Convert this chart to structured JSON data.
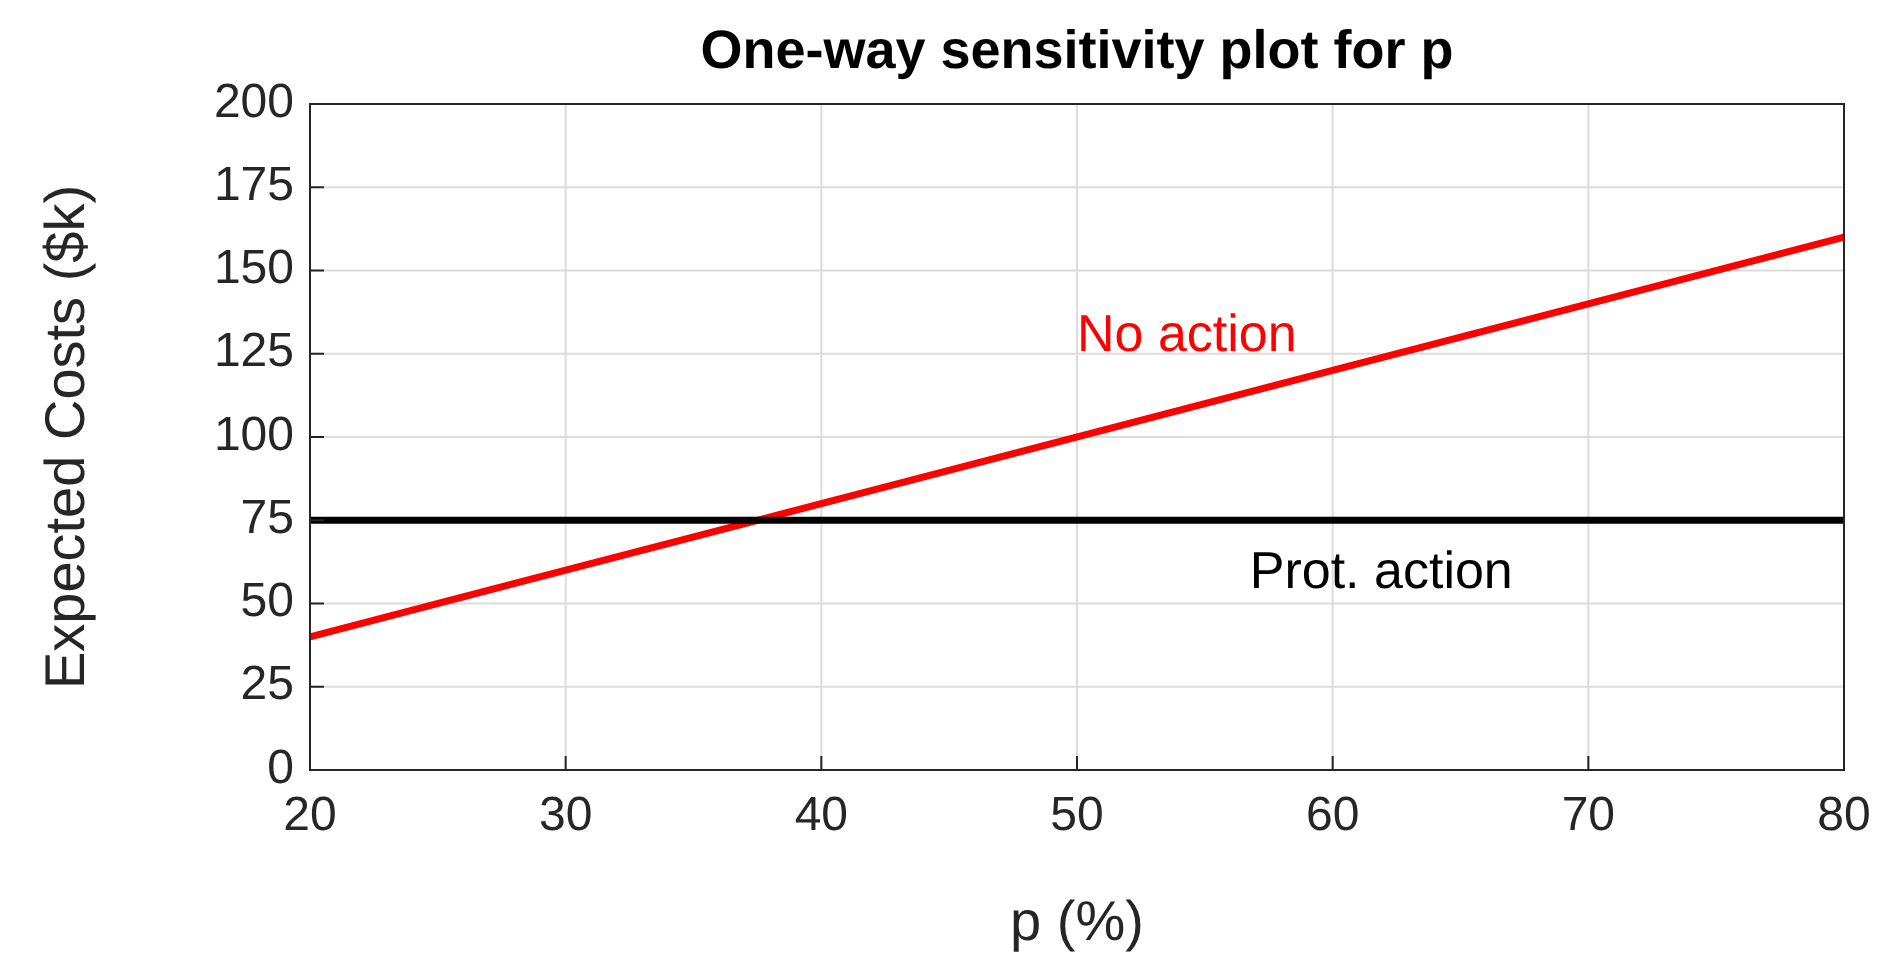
{
  "chart_data": {
    "type": "line",
    "title": "One-way sensitivity plot for p",
    "xlabel": "p (%)",
    "ylabel": "Expected Costs ($k)",
    "x": [
      20,
      80
    ],
    "series": [
      {
        "name": "No action",
        "color": "#ff0000",
        "values": [
          40,
          160
        ]
      },
      {
        "name": "Prot. action",
        "color": "#000000",
        "values": [
          75,
          75
        ]
      }
    ],
    "xlim": [
      20,
      80
    ],
    "xticks": [
      20,
      30,
      40,
      50,
      60,
      70,
      80
    ],
    "ylim": [
      0,
      200
    ],
    "yticks": [
      0,
      25,
      50,
      75,
      100,
      125,
      150,
      175,
      200
    ],
    "grid": true,
    "line_style": "solid"
  }
}
